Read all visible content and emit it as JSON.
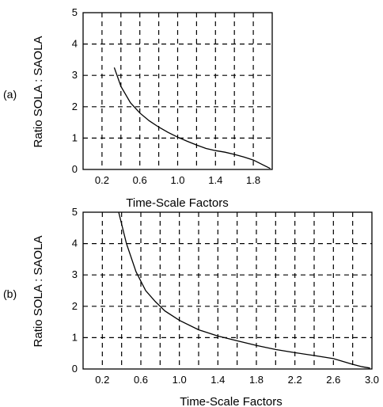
{
  "chart_data": [
    {
      "type": "line",
      "panel_label": "(a)",
      "title": "",
      "xlabel": "Time-Scale Factors",
      "ylabel": "Ratio SOLA : SAOLA",
      "xlim": [
        0.0,
        2.0
      ],
      "ylim": [
        0,
        5
      ],
      "xticks": [
        0.2,
        0.6,
        1.0,
        1.4,
        1.8
      ],
      "xtick_labels": [
        "0.2",
        "0.6",
        "1.0",
        "1.4",
        "1.8"
      ],
      "xgrid": [
        0.2,
        0.4,
        0.6,
        0.8,
        1.0,
        1.2,
        1.4,
        1.6,
        1.8
      ],
      "yticks": [
        0,
        1,
        2,
        3,
        4,
        5
      ],
      "ytick_labels": [
        "0",
        "1",
        "2",
        "3",
        "4",
        "5"
      ],
      "grid": true,
      "series": [
        {
          "x": [
            0.33,
            0.4,
            0.5,
            0.6,
            0.7,
            0.8,
            0.9,
            1.0,
            1.1,
            1.2,
            1.3,
            1.4,
            1.5,
            1.6,
            1.7,
            1.8,
            1.9,
            1.98
          ],
          "y": [
            3.25,
            2.65,
            2.13,
            1.8,
            1.55,
            1.35,
            1.18,
            1.03,
            0.9,
            0.78,
            0.67,
            0.6,
            0.55,
            0.48,
            0.4,
            0.3,
            0.15,
            0.03
          ]
        }
      ]
    },
    {
      "type": "line",
      "panel_label": "(b)",
      "title": "",
      "xlabel": "Time-Scale Factors",
      "ylabel": "Ratio SOLA : SAOLA",
      "xlim": [
        0.0,
        3.0
      ],
      "ylim": [
        0,
        5
      ],
      "xticks": [
        0.2,
        0.6,
        1.0,
        1.4,
        1.8,
        2.2,
        2.6,
        3.0
      ],
      "xtick_labels": [
        "0.2",
        "0.6",
        "1.0",
        "1.4",
        "1.8",
        "2.2",
        "2.6",
        "3.0"
      ],
      "xgrid": [
        0.2,
        0.4,
        0.6,
        0.8,
        1.0,
        1.2,
        1.4,
        1.6,
        1.8,
        2.0,
        2.2,
        2.4,
        2.6,
        2.8
      ],
      "yticks": [
        0,
        1,
        2,
        3,
        4,
        5
      ],
      "ytick_labels": [
        "0",
        "1",
        "2",
        "3",
        "4",
        "5"
      ],
      "grid": true,
      "series": [
        {
          "x": [
            0.37,
            0.45,
            0.55,
            0.65,
            0.75,
            0.85,
            1.0,
            1.2,
            1.4,
            1.6,
            1.8,
            2.0,
            2.2,
            2.4,
            2.6,
            2.8,
            2.9,
            2.98
          ],
          "y": [
            5.0,
            4.0,
            3.1,
            2.5,
            2.15,
            1.85,
            1.55,
            1.25,
            1.05,
            0.9,
            0.75,
            0.62,
            0.52,
            0.43,
            0.33,
            0.15,
            0.07,
            0.03
          ]
        }
      ]
    }
  ]
}
